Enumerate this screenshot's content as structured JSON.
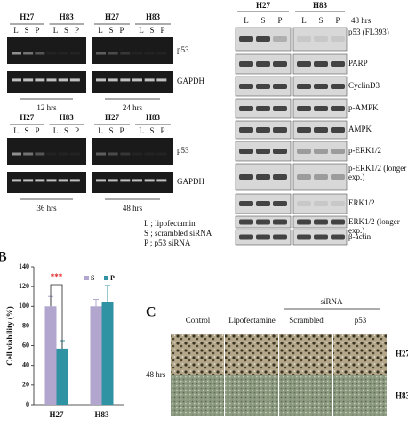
{
  "panel_a": {
    "gel_top": {
      "groups": [
        "H27",
        "H83",
        "H27",
        "H83"
      ],
      "lanes": [
        "L",
        "S",
        "P"
      ],
      "bands": [
        "p53",
        "GAPDH"
      ],
      "times": [
        "12 hrs",
        "24 hrs"
      ]
    },
    "gel_bottom": {
      "groups": [
        "H27",
        "H83",
        "H27",
        "H83"
      ],
      "lanes": [
        "L",
        "S",
        "P"
      ],
      "bands": [
        "p53",
        "GAPDH"
      ],
      "times": [
        "36 hrs",
        "48 hrs"
      ]
    },
    "legend": [
      "L ; lipofectamin",
      "S ; scrambled siRNA",
      "P ; p53 siRNA"
    ]
  },
  "western": {
    "groups": [
      "H27",
      "H83"
    ],
    "lanes": [
      "L",
      "S",
      "P"
    ],
    "time": "48 hrs",
    "rows": [
      "p53 (FL393)",
      "PARP",
      "CyclinD3",
      "p-AMPK",
      "AMPK",
      "p-ERK1/2",
      "p-ERK1/2 (longer exp.)",
      "ERK1/2",
      "ERK1/2 (longer exp.)",
      "β-actin"
    ]
  },
  "chart_data": {
    "type": "bar",
    "panel_label": "B",
    "y_label": "Cell viability (%)",
    "categories": [
      "H27",
      "H83"
    ],
    "series": [
      {
        "name": "S",
        "color": "#b2a6cf",
        "values": [
          100,
          100
        ],
        "errors": [
          10,
          7
        ]
      },
      {
        "name": "P",
        "color": "#2f93a3",
        "values": [
          57,
          104
        ],
        "errors": [
          8,
          17
        ]
      }
    ],
    "annotation": "***",
    "ylim": [
      0,
      140
    ],
    "yticks": [
      0,
      20,
      40,
      60,
      80,
      100,
      120,
      140
    ]
  },
  "panel_c": {
    "label": "C",
    "group": "siRNA",
    "columns": [
      "Control",
      "Lipofectamine",
      "Scrambled",
      "p53"
    ],
    "time": "48 hrs",
    "rows": [
      "H27",
      "H83"
    ]
  }
}
